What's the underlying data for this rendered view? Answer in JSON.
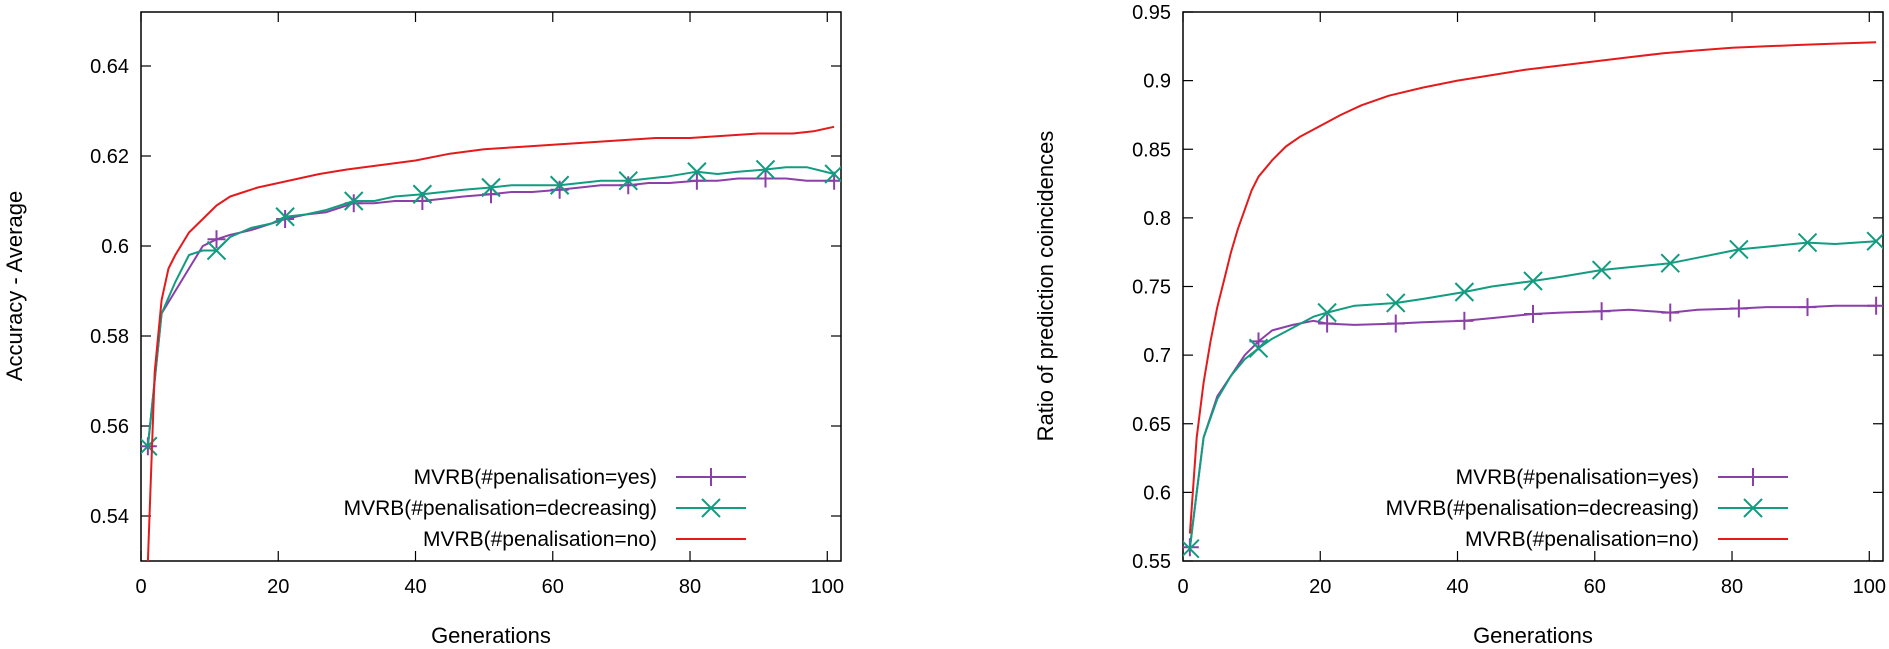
{
  "chart_data": [
    {
      "type": "line",
      "title": "",
      "xlabel": "Generations",
      "ylabel": "Accuracy - Average",
      "xlim": [
        0,
        102
      ],
      "ylim": [
        0.53,
        0.652
      ],
      "xticks": [
        0,
        20,
        40,
        60,
        80,
        100
      ],
      "yticks": [
        0.54,
        0.56,
        0.58,
        0.6,
        0.62,
        0.64
      ],
      "ytick_labels": [
        "0.54",
        "0.56",
        "0.58",
        "0.6",
        "0.62",
        "0.64"
      ],
      "xtick_labels": [
        "0",
        "20",
        "40",
        "60",
        "80",
        "100"
      ],
      "grid": false,
      "legend_position": "bottom-right",
      "series": [
        {
          "name": "MVRB(#penalisation=yes)",
          "color": "#8b3fa8",
          "marker": "plus",
          "x": [
            1,
            3,
            5,
            7,
            9,
            11,
            13,
            16,
            19,
            21,
            24,
            27,
            31,
            34,
            37,
            41,
            44,
            47,
            51,
            54,
            57,
            61,
            64,
            67,
            71,
            74,
            77,
            81,
            84,
            87,
            91,
            94,
            97,
            101
          ],
          "y": [
            0.5555,
            0.585,
            0.59,
            0.595,
            0.6,
            0.6015,
            0.6025,
            0.6035,
            0.605,
            0.606,
            0.607,
            0.6075,
            0.6095,
            0.6095,
            0.61,
            0.61,
            0.6105,
            0.611,
            0.6115,
            0.612,
            0.612,
            0.6125,
            0.613,
            0.6135,
            0.6135,
            0.614,
            0.614,
            0.6145,
            0.6145,
            0.615,
            0.615,
            0.615,
            0.6145,
            0.6145
          ]
        },
        {
          "name": "MVRB(#penalisation=decreasing)",
          "color": "#129c80",
          "marker": "cross",
          "x": [
            1,
            3,
            5,
            7,
            9,
            11,
            13,
            16,
            19,
            21,
            24,
            27,
            31,
            34,
            37,
            41,
            44,
            47,
            51,
            54,
            57,
            61,
            64,
            67,
            71,
            74,
            77,
            81,
            84,
            87,
            91,
            94,
            97,
            101
          ],
          "y": [
            0.5555,
            0.585,
            0.592,
            0.598,
            0.599,
            0.599,
            0.602,
            0.604,
            0.605,
            0.6065,
            0.607,
            0.608,
            0.61,
            0.61,
            0.611,
            0.6115,
            0.612,
            0.6125,
            0.613,
            0.6135,
            0.6135,
            0.6135,
            0.614,
            0.6145,
            0.6145,
            0.615,
            0.6155,
            0.6165,
            0.616,
            0.6165,
            0.617,
            0.6175,
            0.6175,
            0.616
          ]
        },
        {
          "name": "MVRB(#penalisation=no)",
          "color": "#e41a1c",
          "marker": "none",
          "x": [
            1,
            2,
            3,
            4,
            5,
            7,
            9,
            11,
            13,
            15,
            17,
            20,
            23,
            26,
            30,
            35,
            40,
            45,
            50,
            55,
            60,
            65,
            70,
            75,
            80,
            85,
            90,
            95,
            98,
            101
          ],
          "y": [
            0.53,
            0.572,
            0.588,
            0.595,
            0.598,
            0.603,
            0.606,
            0.609,
            0.611,
            0.612,
            0.613,
            0.614,
            0.615,
            0.616,
            0.617,
            0.618,
            0.619,
            0.6205,
            0.6215,
            0.622,
            0.6225,
            0.623,
            0.6235,
            0.624,
            0.624,
            0.6245,
            0.625,
            0.625,
            0.6255,
            0.6265
          ]
        }
      ]
    },
    {
      "type": "line",
      "title": "",
      "xlabel": "Generations",
      "ylabel": "Ratio of prediction coincidences",
      "xlim": [
        0,
        102
      ],
      "ylim": [
        0.55,
        0.95
      ],
      "xticks": [
        0,
        20,
        40,
        60,
        80,
        100
      ],
      "yticks": [
        0.55,
        0.6,
        0.65,
        0.7,
        0.75,
        0.8,
        0.85,
        0.9,
        0.95
      ],
      "ytick_labels": [
        "0.55",
        "0.6",
        "0.65",
        "0.7",
        "0.75",
        "0.8",
        "0.85",
        "0.9",
        "0.95"
      ],
      "xtick_labels": [
        "0",
        "20",
        "40",
        "60",
        "80",
        "100"
      ],
      "grid": false,
      "legend_position": "bottom-right",
      "series": [
        {
          "name": "MVRB(#penalisation=yes)",
          "color": "#8b3fa8",
          "marker": "plus",
          "x": [
            1,
            2,
            3,
            5,
            7,
            9,
            11,
            13,
            16,
            19,
            21,
            25,
            31,
            35,
            41,
            45,
            51,
            55,
            61,
            65,
            71,
            75,
            81,
            85,
            91,
            95,
            101
          ],
          "y": [
            0.56,
            0.6,
            0.64,
            0.67,
            0.685,
            0.7,
            0.71,
            0.718,
            0.722,
            0.725,
            0.723,
            0.722,
            0.723,
            0.724,
            0.725,
            0.727,
            0.73,
            0.731,
            0.732,
            0.733,
            0.731,
            0.733,
            0.734,
            0.735,
            0.735,
            0.736,
            0.736
          ]
        },
        {
          "name": "MVRB(#penalisation=decreasing)",
          "color": "#129c80",
          "marker": "cross",
          "x": [
            1,
            2,
            3,
            5,
            7,
            9,
            11,
            13,
            16,
            19,
            21,
            25,
            31,
            35,
            41,
            45,
            51,
            55,
            61,
            65,
            71,
            75,
            81,
            85,
            91,
            95,
            101
          ],
          "y": [
            0.559,
            0.6,
            0.64,
            0.668,
            0.685,
            0.697,
            0.705,
            0.712,
            0.72,
            0.728,
            0.731,
            0.736,
            0.738,
            0.741,
            0.746,
            0.75,
            0.754,
            0.757,
            0.762,
            0.764,
            0.767,
            0.771,
            0.777,
            0.779,
            0.782,
            0.781,
            0.783
          ]
        },
        {
          "name": "MVRB(#penalisation=no)",
          "color": "#e41a1c",
          "marker": "none",
          "x": [
            1,
            2,
            3,
            4,
            5,
            6,
            7,
            8,
            9,
            10,
            11,
            13,
            15,
            17,
            20,
            23,
            26,
            30,
            35,
            40,
            45,
            50,
            55,
            60,
            65,
            70,
            75,
            80,
            85,
            90,
            95,
            101
          ],
          "y": [
            0.57,
            0.64,
            0.68,
            0.71,
            0.735,
            0.755,
            0.775,
            0.792,
            0.806,
            0.82,
            0.83,
            0.842,
            0.852,
            0.859,
            0.867,
            0.875,
            0.882,
            0.889,
            0.895,
            0.9,
            0.904,
            0.908,
            0.911,
            0.914,
            0.917,
            0.92,
            0.922,
            0.924,
            0.925,
            0.926,
            0.927,
            0.928
          ]
        }
      ]
    }
  ]
}
